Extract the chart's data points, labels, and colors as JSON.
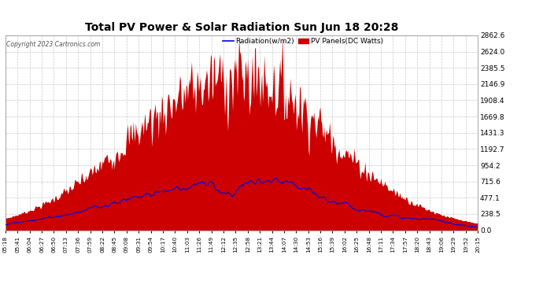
{
  "title": "Total PV Power & Solar Radiation Sun Jun 18 20:28",
  "copyright": "Copyright 2023 Cartronics.com",
  "legend_radiation": "Radiation(w/m2)",
  "legend_pv": "PV Panels(DC Watts)",
  "ylabel_right_values": [
    2862.6,
    2624.0,
    2385.5,
    2146.9,
    1908.4,
    1669.8,
    1431.3,
    1192.7,
    954.2,
    715.6,
    477.1,
    238.5,
    0.0
  ],
  "ymax": 2862.6,
  "ymin": 0.0,
  "background_color": "#ffffff",
  "plot_bg_color": "#ffffff",
  "grid_color": "#bbbbbb",
  "fill_color": "#cc0000",
  "line_color": "#0000dd",
  "title_color": "#000000",
  "copyright_color": "#555555",
  "x_tick_labels": [
    "05:18",
    "05:41",
    "06:04",
    "06:27",
    "06:50",
    "07:13",
    "07:36",
    "07:59",
    "08:22",
    "08:45",
    "09:08",
    "09:31",
    "09:54",
    "10:17",
    "10:40",
    "11:03",
    "11:26",
    "11:49",
    "12:12",
    "12:35",
    "12:58",
    "13:21",
    "13:44",
    "14:07",
    "14:30",
    "14:53",
    "15:16",
    "15:39",
    "16:02",
    "16:25",
    "16:48",
    "17:11",
    "17:34",
    "17:57",
    "18:20",
    "18:43",
    "19:06",
    "19:29",
    "19:52",
    "20:15"
  ],
  "num_points": 600,
  "figwidth": 6.9,
  "figheight": 3.75,
  "dpi": 100
}
